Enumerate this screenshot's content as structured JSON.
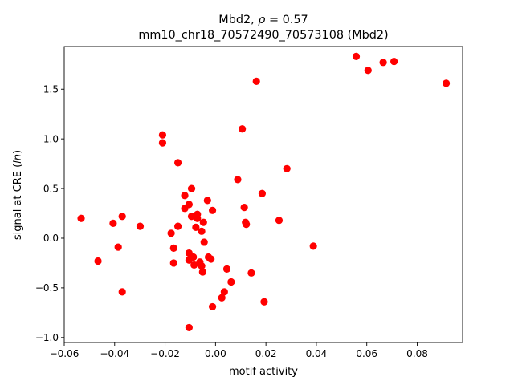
{
  "chart_data": {
    "type": "scatter",
    "title_line1_pre": "Mbd2, ",
    "title_line1_rho": "ρ",
    "title_line1_post": " = 0.57",
    "title_line2": "mm10_chr18_70572490_70573108 (Mbd2)",
    "xlabel": "motif activity",
    "ylabel_pre": "signal at CRE (",
    "ylabel_italic": "ln",
    "ylabel_post": ")",
    "xlim": [
      -0.06,
      0.098
    ],
    "ylim": [
      -1.05,
      1.93
    ],
    "xticks": [
      -0.06,
      -0.04,
      -0.02,
      0.0,
      0.02,
      0.04,
      0.06,
      0.08
    ],
    "xtick_labels": [
      "−0.06",
      "−0.04",
      "−0.02",
      "0.00",
      "0.02",
      "0.04",
      "0.06",
      "0.08"
    ],
    "yticks": [
      -1.0,
      -0.5,
      0.0,
      0.5,
      1.0,
      1.5
    ],
    "ytick_labels": [
      "−1.0",
      "−0.5",
      "0.0",
      "0.5",
      "1.0",
      "1.5"
    ],
    "grid": false,
    "marker_color": "#ff0000",
    "points": [
      {
        "x": -0.0533,
        "y": 0.2
      },
      {
        "x": -0.0466,
        "y": -0.23
      },
      {
        "x": -0.0406,
        "y": 0.15
      },
      {
        "x": -0.0386,
        "y": -0.09
      },
      {
        "x": -0.037,
        "y": 0.22
      },
      {
        "x": -0.037,
        "y": -0.54
      },
      {
        "x": -0.0299,
        "y": 0.12
      },
      {
        "x": -0.021,
        "y": 1.04
      },
      {
        "x": -0.021,
        "y": 0.96
      },
      {
        "x": -0.0176,
        "y": 0.05
      },
      {
        "x": -0.0166,
        "y": -0.1
      },
      {
        "x": -0.0166,
        "y": -0.25
      },
      {
        "x": -0.0149,
        "y": 0.76
      },
      {
        "x": -0.0149,
        "y": 0.12
      },
      {
        "x": -0.0122,
        "y": 0.43
      },
      {
        "x": -0.0122,
        "y": 0.3
      },
      {
        "x": -0.0105,
        "y": 0.34
      },
      {
        "x": -0.0105,
        "y": -0.15
      },
      {
        "x": -0.0105,
        "y": -0.22
      },
      {
        "x": -0.0105,
        "y": -0.9
      },
      {
        "x": -0.0095,
        "y": 0.5
      },
      {
        "x": -0.0095,
        "y": 0.22
      },
      {
        "x": -0.0088,
        "y": -0.19
      },
      {
        "x": -0.0085,
        "y": -0.27
      },
      {
        "x": -0.0078,
        "y": 0.11
      },
      {
        "x": -0.0072,
        "y": 0.24
      },
      {
        "x": -0.0072,
        "y": 0.2
      },
      {
        "x": -0.0062,
        "y": -0.24
      },
      {
        "x": -0.0055,
        "y": 0.07
      },
      {
        "x": -0.0055,
        "y": -0.28
      },
      {
        "x": -0.0051,
        "y": -0.34
      },
      {
        "x": -0.0048,
        "y": 0.16
      },
      {
        "x": -0.0045,
        "y": -0.04
      },
      {
        "x": -0.0032,
        "y": 0.38
      },
      {
        "x": -0.0028,
        "y": -0.19
      },
      {
        "x": -0.0018,
        "y": -0.21
      },
      {
        "x": -0.0012,
        "y": 0.28
      },
      {
        "x": -0.0012,
        "y": -0.69
      },
      {
        "x": 0.0025,
        "y": -0.6
      },
      {
        "x": 0.0035,
        "y": -0.54
      },
      {
        "x": 0.0045,
        "y": -0.31
      },
      {
        "x": 0.0062,
        "y": -0.44
      },
      {
        "x": 0.0088,
        "y": 0.59
      },
      {
        "x": 0.0106,
        "y": 1.1
      },
      {
        "x": 0.0114,
        "y": 0.31
      },
      {
        "x": 0.0119,
        "y": 0.16
      },
      {
        "x": 0.0122,
        "y": 0.14
      },
      {
        "x": 0.0142,
        "y": -0.35
      },
      {
        "x": 0.0162,
        "y": 1.58
      },
      {
        "x": 0.0185,
        "y": 0.45
      },
      {
        "x": 0.0193,
        "y": -0.64
      },
      {
        "x": 0.0252,
        "y": 0.18
      },
      {
        "x": 0.0283,
        "y": 0.7
      },
      {
        "x": 0.0388,
        "y": -0.08
      },
      {
        "x": 0.0558,
        "y": 1.83
      },
      {
        "x": 0.0605,
        "y": 1.69
      },
      {
        "x": 0.0665,
        "y": 1.77
      },
      {
        "x": 0.0708,
        "y": 1.78
      },
      {
        "x": 0.0915,
        "y": 1.56
      }
    ]
  }
}
